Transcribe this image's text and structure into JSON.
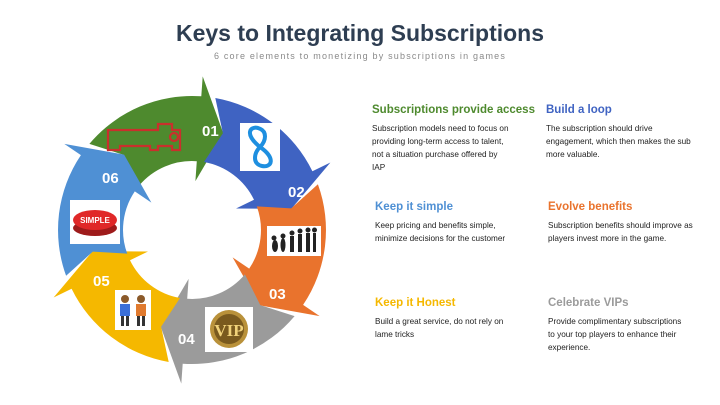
{
  "title": "Keys to Integrating Subscriptions",
  "subtitle": "6 core elements to monetizing by subscriptions in games",
  "segments": [
    {
      "number": "01",
      "heading": "Subscriptions provide access",
      "color": "#4e8a2e",
      "text": "Subscription models need to focus on providing long-term access to talent, not a situation purchase offered by IAP",
      "icon": "key-icon"
    },
    {
      "number": "02",
      "heading": "Build a loop",
      "color": "#3f63c2",
      "text": "The subscription should drive engagement, which then makes the sub more valuable.",
      "icon": "infinity-loop-icon"
    },
    {
      "number": "03",
      "heading": "Evolve benefits",
      "color": "#e9732d",
      "text": "Subscription benefits should improve as players invest more in the game.",
      "icon": "evolution-icon"
    },
    {
      "number": "04",
      "heading": "Celebrate VIPs",
      "color": "#9b9b9b",
      "text": "Provide complimentary subscriptions to your top players to enhance their experience.",
      "icon": "vip-badge-icon"
    },
    {
      "number": "05",
      "heading": "Keep it Honest",
      "color": "#f5b800",
      "text": "Build a great service, do not rely on lame tricks",
      "icon": "handshake-icon"
    },
    {
      "number": "06",
      "heading": "Keep it simple",
      "color": "#4f90d4",
      "text": "Keep pricing and benefits simple, minimize decisions for the customer",
      "icon": "simple-button-icon"
    }
  ],
  "icon_labels": {
    "simple": "SIMPLE",
    "vip": "VIP"
  }
}
